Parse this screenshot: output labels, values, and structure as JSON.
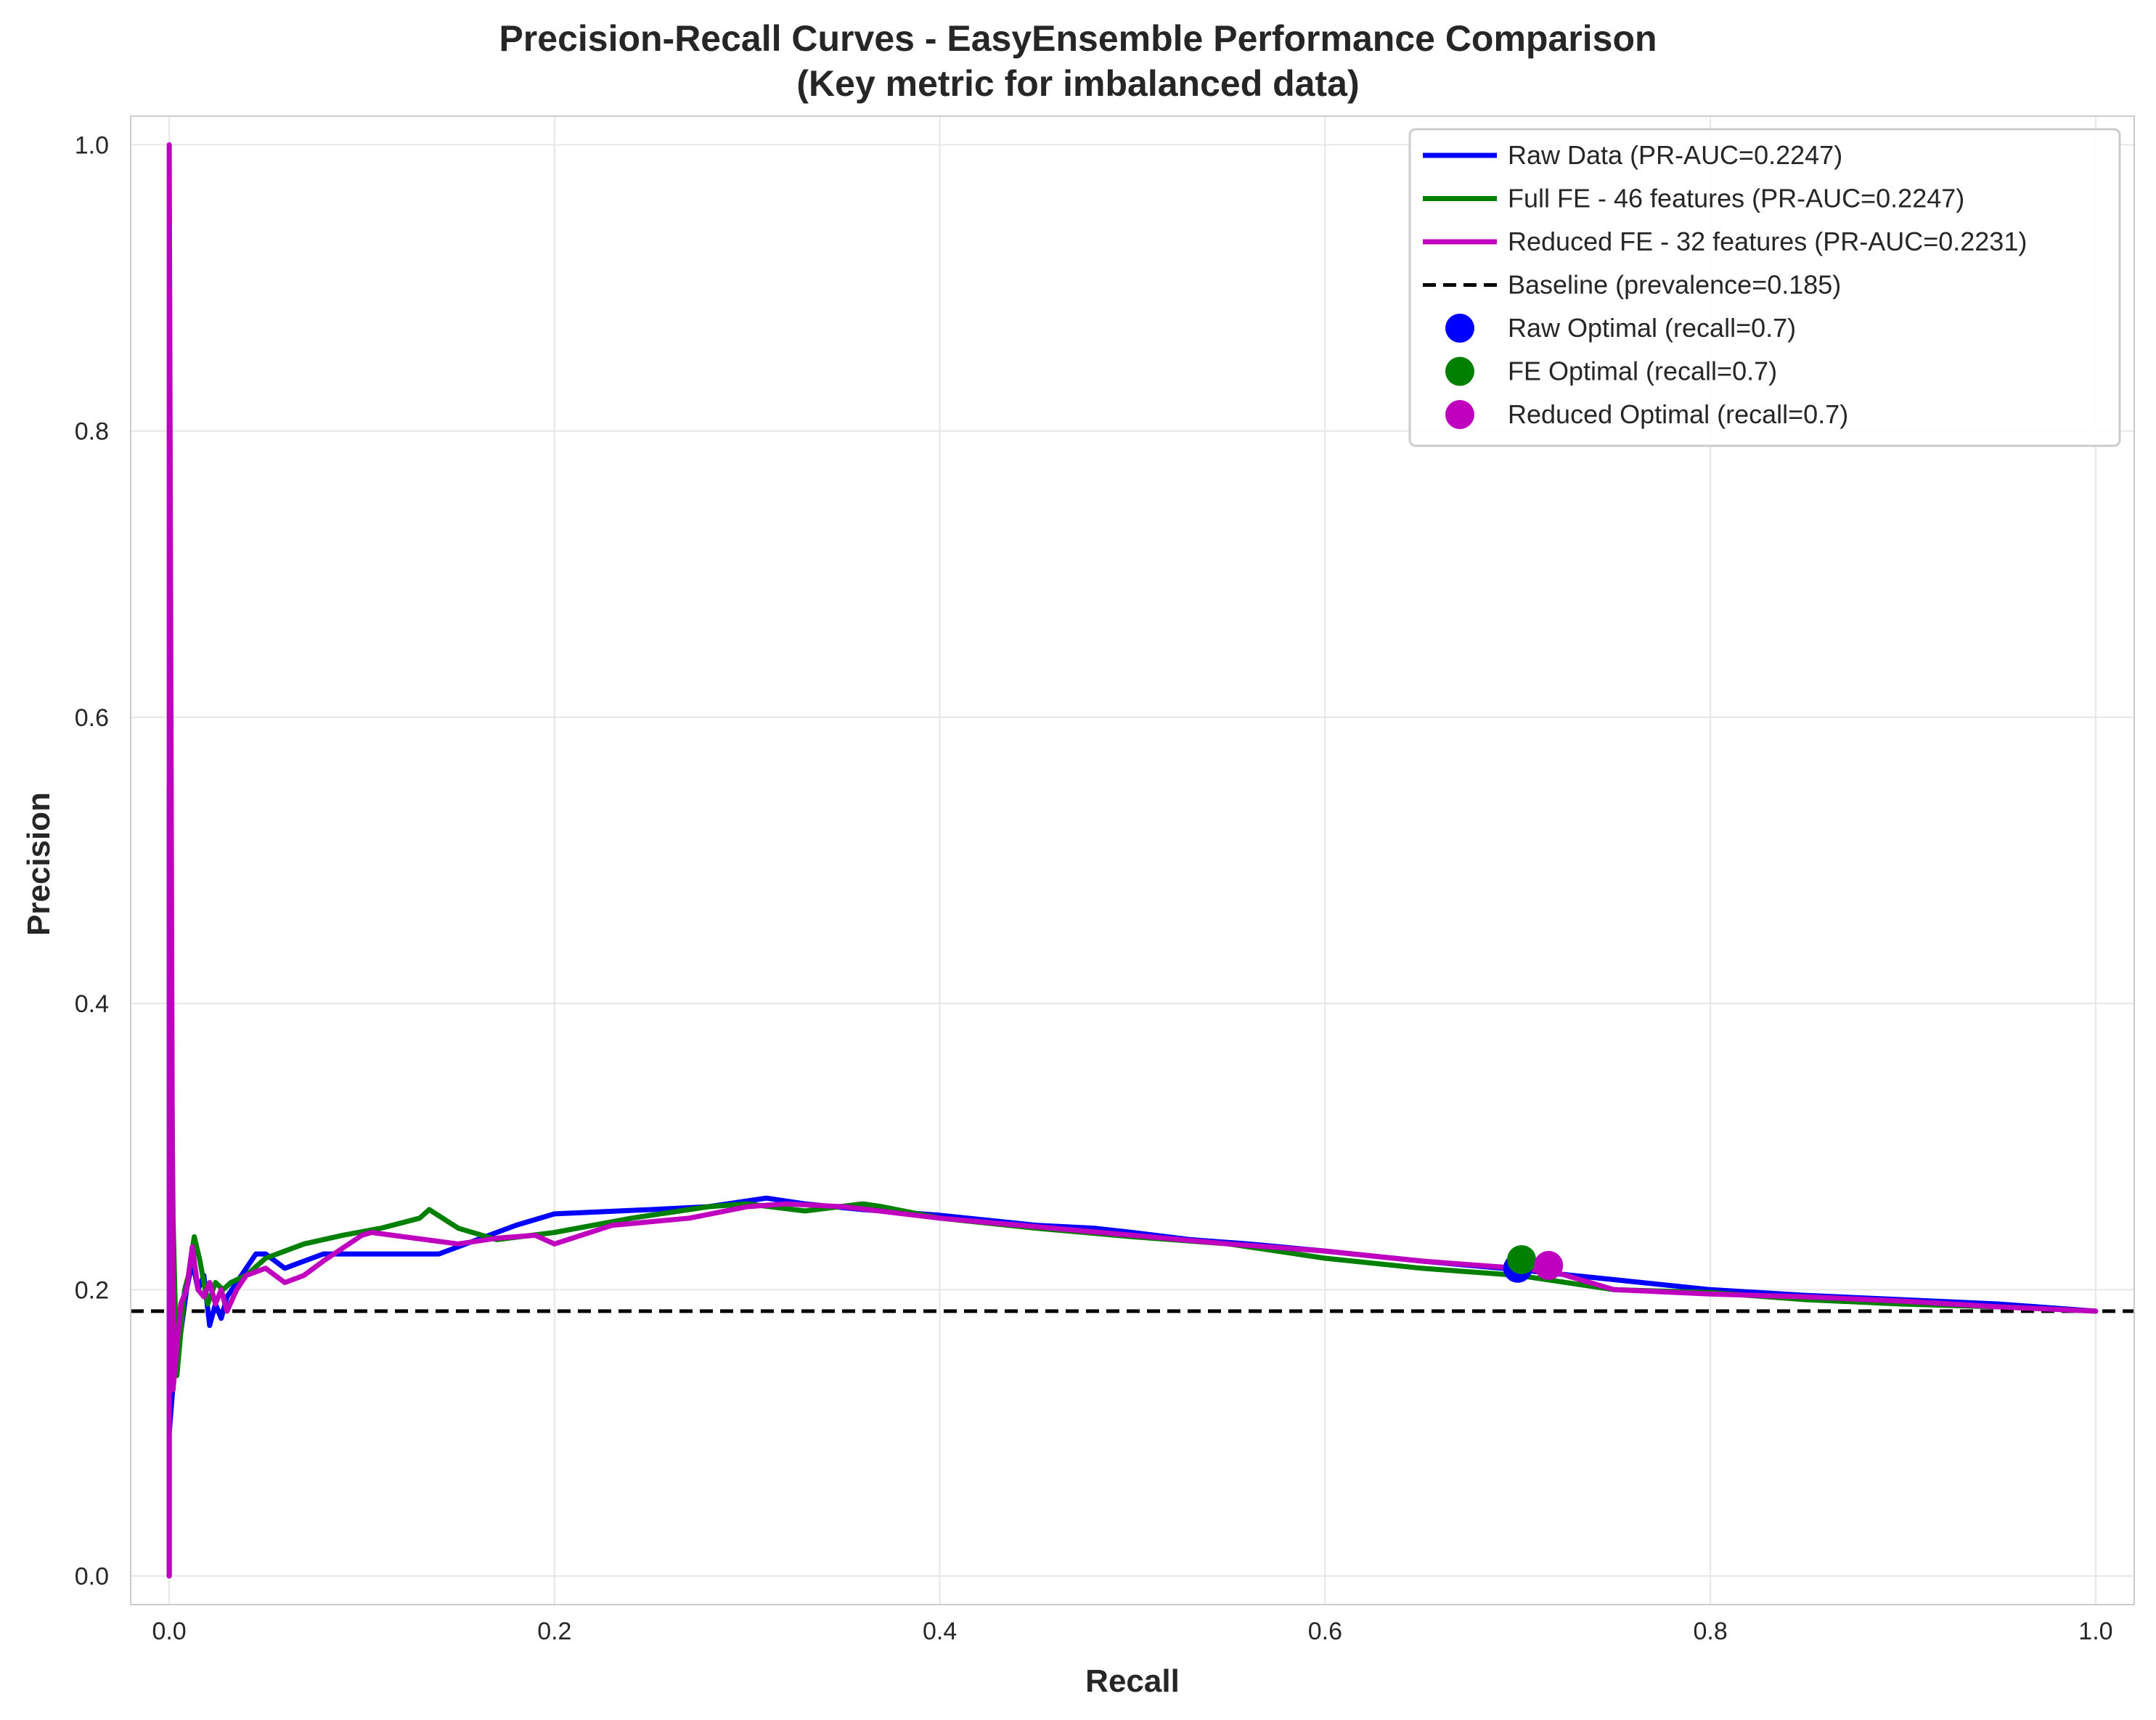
{
  "chart_data": {
    "type": "line",
    "title": "Precision-Recall Curves - EasyEnsemble Performance Comparison",
    "subtitle": "(Key metric for imbalanced data)",
    "xlabel": "Recall",
    "ylabel": "Precision",
    "xlim": [
      -0.02,
      1.02
    ],
    "ylim": [
      -0.02,
      1.02
    ],
    "xticks": [
      "0.0",
      "0.2",
      "0.4",
      "0.6",
      "0.8",
      "1.0"
    ],
    "yticks": [
      "0.0",
      "0.2",
      "0.4",
      "0.6",
      "0.8",
      "1.0"
    ],
    "grid": true,
    "legend_position": "top-right",
    "series": [
      {
        "name": "Raw Data (PR-AUC=0.2247)",
        "color": "#0000ff",
        "x": [
          0.0,
          0.0,
          0.003,
          0.006,
          0.009,
          0.012,
          0.015,
          0.018,
          0.021,
          0.024,
          0.027,
          0.03,
          0.035,
          0.04,
          0.045,
          0.05,
          0.06,
          0.08,
          0.1,
          0.12,
          0.14,
          0.16,
          0.18,
          0.2,
          0.25,
          0.28,
          0.3,
          0.31,
          0.33,
          0.36,
          0.4,
          0.45,
          0.48,
          0.5,
          0.53,
          0.56,
          0.6,
          0.65,
          0.7,
          0.75,
          0.8,
          0.85,
          0.9,
          0.95,
          1.0
        ],
        "y": [
          0.0,
          0.1,
          0.15,
          0.17,
          0.2,
          0.22,
          0.2,
          0.21,
          0.175,
          0.19,
          0.18,
          0.195,
          0.205,
          0.215,
          0.225,
          0.225,
          0.215,
          0.225,
          0.225,
          0.225,
          0.225,
          0.235,
          0.245,
          0.253,
          0.256,
          0.258,
          0.262,
          0.264,
          0.26,
          0.256,
          0.252,
          0.245,
          0.243,
          0.24,
          0.235,
          0.232,
          0.227,
          0.22,
          0.214,
          0.207,
          0.2,
          0.196,
          0.193,
          0.19,
          0.185
        ]
      },
      {
        "name": "Full FE - 46 features (PR-AUC=0.2247)",
        "color": "#008000",
        "x": [
          0.0,
          0.0,
          0.002,
          0.004,
          0.006,
          0.008,
          0.01,
          0.013,
          0.016,
          0.02,
          0.024,
          0.028,
          0.032,
          0.04,
          0.05,
          0.07,
          0.09,
          0.11,
          0.13,
          0.135,
          0.15,
          0.17,
          0.2,
          0.24,
          0.28,
          0.3,
          0.33,
          0.36,
          0.37,
          0.4,
          0.45,
          0.5,
          0.55,
          0.6,
          0.65,
          0.7,
          0.75,
          0.8,
          0.85,
          0.9,
          0.95,
          1.0
        ],
        "y": [
          0.0,
          0.55,
          0.25,
          0.14,
          0.17,
          0.2,
          0.21,
          0.237,
          0.22,
          0.19,
          0.205,
          0.2,
          0.205,
          0.21,
          0.222,
          0.232,
          0.238,
          0.243,
          0.25,
          0.256,
          0.243,
          0.235,
          0.24,
          0.25,
          0.258,
          0.26,
          0.255,
          0.26,
          0.258,
          0.25,
          0.243,
          0.237,
          0.232,
          0.222,
          0.215,
          0.21,
          0.2,
          0.198,
          0.193,
          0.19,
          0.188,
          0.185
        ]
      },
      {
        "name": "Reduced FE - 32 features (PR-AUC=0.2231)",
        "color": "#bf00bf",
        "x": [
          0.0,
          0.0,
          0.002,
          0.004,
          0.006,
          0.009,
          0.012,
          0.015,
          0.018,
          0.021,
          0.024,
          0.027,
          0.03,
          0.035,
          0.04,
          0.05,
          0.06,
          0.07,
          0.08,
          0.1,
          0.105,
          0.15,
          0.17,
          0.19,
          0.2,
          0.23,
          0.27,
          0.3,
          0.32,
          0.35,
          0.4,
          0.45,
          0.5,
          0.55,
          0.6,
          0.65,
          0.7,
          0.72,
          0.75,
          0.8,
          0.85,
          0.9,
          0.95,
          1.0
        ],
        "y": [
          0.0,
          1.0,
          0.13,
          0.16,
          0.19,
          0.2,
          0.23,
          0.2,
          0.195,
          0.205,
          0.19,
          0.2,
          0.185,
          0.2,
          0.21,
          0.215,
          0.205,
          0.21,
          0.22,
          0.238,
          0.24,
          0.232,
          0.236,
          0.238,
          0.232,
          0.245,
          0.25,
          0.258,
          0.26,
          0.258,
          0.25,
          0.244,
          0.238,
          0.232,
          0.227,
          0.22,
          0.215,
          0.212,
          0.2,
          0.197,
          0.195,
          0.192,
          0.188,
          0.185
        ]
      }
    ],
    "baseline": {
      "name": "Baseline (prevalence=0.185)",
      "y": 0.185,
      "color": "#000000"
    },
    "optimal_points": [
      {
        "name": "Raw Optimal (recall=0.7)",
        "x": 0.7,
        "y": 0.215,
        "color": "#0000ff"
      },
      {
        "name": "FE Optimal (recall=0.7)",
        "x": 0.702,
        "y": 0.221,
        "color": "#008000"
      },
      {
        "name": "Reduced Optimal (recall=0.7)",
        "x": 0.716,
        "y": 0.217,
        "color": "#bf00bf"
      }
    ]
  }
}
